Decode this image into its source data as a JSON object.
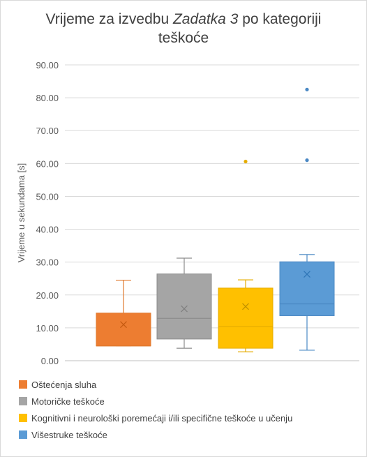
{
  "chart_data": {
    "type": "box",
    "title_parts": [
      {
        "text": "Vrijeme za izvedbu ",
        "italic": false
      },
      {
        "text": "Zadatka 3",
        "italic": true
      },
      {
        "text": " po kategoriji",
        "italic": false
      }
    ],
    "title_line2": "teškoće",
    "ylabel": "Vrijeme u sekundama [s]",
    "ylim": [
      0,
      90
    ],
    "yticks": [
      "0.00",
      "10.00",
      "20.00",
      "30.00",
      "40.00",
      "50.00",
      "60.00",
      "70.00",
      "80.00",
      "90.00"
    ],
    "grid": true,
    "legend_position": "bottom",
    "series": [
      {
        "name": "Oštećenja sluha",
        "color": "#ed7d31",
        "min": 4.5,
        "q1": 4.5,
        "median": 4.5,
        "q3": 14.5,
        "max": 24.5,
        "mean": 11.0,
        "outliers": []
      },
      {
        "name": "Motoričke teškoće",
        "color": "#a5a5a5",
        "min": 3.8,
        "q1": 6.6,
        "median": 12.9,
        "q3": 26.4,
        "max": 31.2,
        "mean": 15.8,
        "outliers": []
      },
      {
        "name": "Kognitivni i neurološki poremećaji i/ili specifične teškoće u učenju",
        "color": "#ffc000",
        "min": 2.7,
        "q1": 3.8,
        "median": 10.4,
        "q3": 22.1,
        "max": 24.6,
        "mean": 16.5,
        "outliers": [
          60.6
        ]
      },
      {
        "name": "Višestruke teškoće",
        "color": "#5b9bd5",
        "min": 3.2,
        "q1": 13.7,
        "median": 17.3,
        "q3": 30.1,
        "max": 32.3,
        "mean": 26.3,
        "outliers": [
          61.0,
          82.5
        ]
      }
    ]
  }
}
